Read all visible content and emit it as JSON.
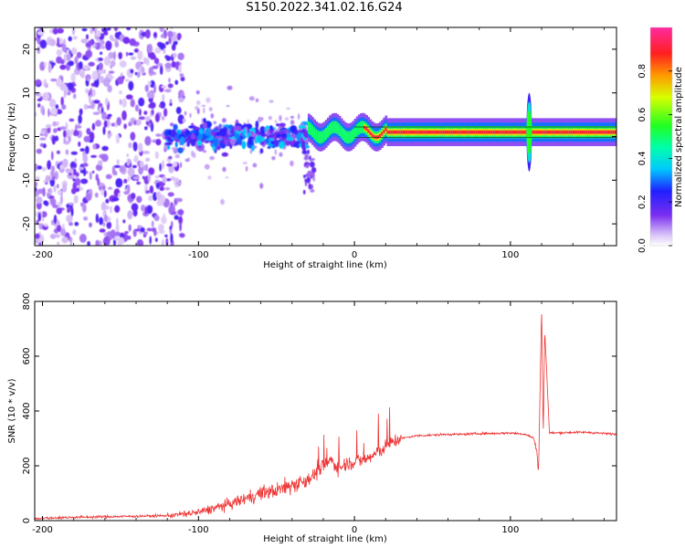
{
  "title": "S150.2022.341.02.16.G24",
  "chart_data": [
    {
      "type": "heatmap",
      "name": "spectrogram",
      "xlabel": "Height of straight line (km)",
      "ylabel": "Frequency (Hz)",
      "xlim": [
        -205,
        168
      ],
      "ylim": [
        -25,
        25
      ],
      "xticks": [
        -200,
        -100,
        0,
        100
      ],
      "yticks": [
        -20,
        -10,
        0,
        10,
        20
      ],
      "colorbar": {
        "label": "Normalized spectral amplitude",
        "range": [
          0,
          1
        ],
        "ticks": [
          0.0,
          0.2,
          0.4,
          0.6,
          0.8
        ],
        "tick_labels": [
          "0.0",
          "0.2",
          "0.4",
          "0.6",
          "0.8"
        ]
      },
      "features": [
        {
          "desc": "scattered low-amplitude noise",
          "x_range": [
            -205,
            -110
          ],
          "freq_range": [
            -25,
            25
          ],
          "amplitude": 0.2
        },
        {
          "desc": "noisy band near zero",
          "x_range": [
            -120,
            -30
          ],
          "freq_range": [
            -7,
            7
          ],
          "amplitude": 0.35
        },
        {
          "desc": "coherent signal line",
          "x_range": [
            -30,
            168
          ],
          "freq_center": 1,
          "amplitude": 0.9
        },
        {
          "desc": "vertical spike",
          "x": 112,
          "freq_range": [
            -6,
            9
          ],
          "amplitude": 0.5
        }
      ]
    },
    {
      "type": "line",
      "name": "snr",
      "xlabel": "Height of straight line (km)",
      "ylabel": "SNR (10 * v/v)",
      "xlim": [
        -205,
        168
      ],
      "ylim": [
        0,
        800
      ],
      "xticks": [
        -200,
        -100,
        0,
        100
      ],
      "yticks": [
        0,
        200,
        400,
        600,
        800
      ],
      "color": "#ee3333",
      "series": [
        {
          "name": "SNR",
          "x": [
            -205,
            -180,
            -150,
            -120,
            -100,
            -90,
            -80,
            -70,
            -60,
            -50,
            -40,
            -30,
            -25,
            -20,
            -15,
            -10,
            -5,
            0,
            5,
            10,
            15,
            20,
            25,
            30,
            40,
            50,
            60,
            70,
            80,
            90,
            100,
            110,
            115,
            117,
            118,
            120,
            121,
            122,
            125,
            130,
            140,
            150,
            160,
            168
          ],
          "y": [
            8,
            12,
            15,
            18,
            30,
            45,
            60,
            80,
            100,
            110,
            130,
            150,
            170,
            200,
            220,
            190,
            210,
            215,
            220,
            230,
            250,
            270,
            290,
            300,
            310,
            312,
            315,
            315,
            318,
            318,
            320,
            315,
            300,
            250,
            170,
            780,
            300,
            700,
            320,
            320,
            322,
            322,
            318,
            315
          ]
        }
      ]
    }
  ]
}
